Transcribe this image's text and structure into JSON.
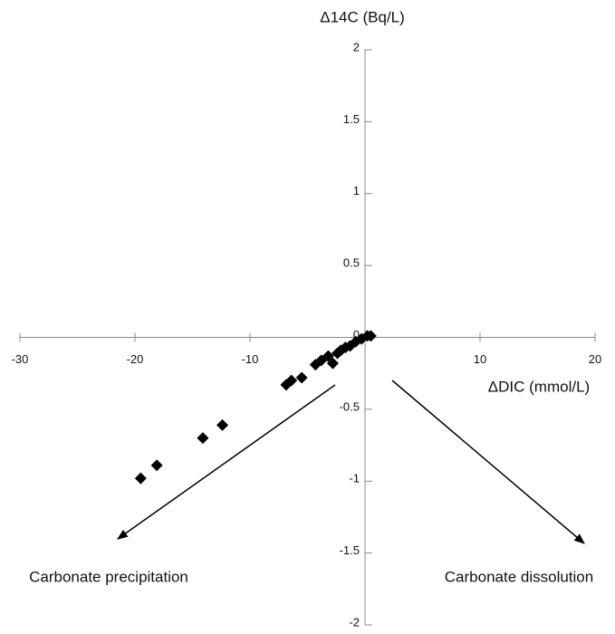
{
  "chart_data": {
    "type": "scatter",
    "x_label": "ΔDIC (mmol/L)",
    "y_label": "Δ14C (Bq/L)",
    "annotations": [
      "Carbonate precipitation",
      "Carbonate dissolution"
    ],
    "color": "#000000",
    "xlim": [
      -30,
      20
    ],
    "xticks": [
      -30,
      -20,
      -10,
      10,
      20
    ],
    "ylim": [
      -2,
      2
    ],
    "yticks": [
      -2,
      -1.5,
      -1,
      -0.5,
      0,
      0.5,
      1,
      1.5,
      2
    ],
    "x": [
      -19.5,
      -18.1,
      -14.1,
      -12.4,
      -6.85,
      -6.4,
      -5.5,
      -4.3,
      -3.8,
      -3.2,
      -2.8,
      -2.4,
      -2.1,
      -1.7,
      -1.3,
      -0.8,
      -0.3,
      0.2,
      0.5
    ],
    "y": [
      -0.98,
      -0.89,
      -0.7,
      -0.61,
      -0.33,
      -0.3,
      -0.28,
      -0.19,
      -0.16,
      -0.13,
      -0.18,
      -0.11,
      -0.09,
      -0.07,
      -0.06,
      -0.03,
      -0.01,
      0.01,
      0.01
    ]
  }
}
